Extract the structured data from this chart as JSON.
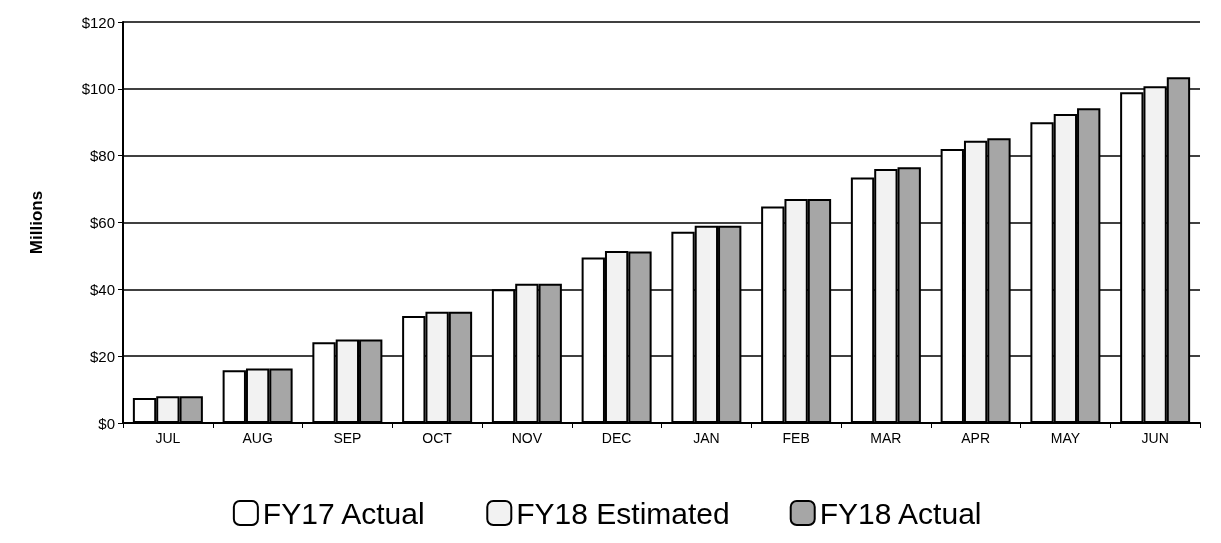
{
  "chart_data": {
    "type": "bar",
    "ylabel": "Millions",
    "categories": [
      "JUL",
      "AUG",
      "SEP",
      "OCT",
      "NOV",
      "DEC",
      "JAN",
      "FEB",
      "MAR",
      "APR",
      "MAY",
      "JUN"
    ],
    "series": [
      {
        "name": "FY17 Actual",
        "color": "#ffffff",
        "values": [
          7.5,
          15.8,
          24.2,
          32,
          40,
          49.5,
          57.2,
          64.8,
          73.5,
          82,
          90,
          99
        ]
      },
      {
        "name": "FY18 Estimated",
        "color": "#f2f2f2",
        "values": [
          8,
          16.3,
          25,
          33.3,
          41.7,
          51.5,
          59,
          67,
          76,
          84.5,
          92.5,
          100.8
        ]
      },
      {
        "name": "FY18 Actual",
        "color": "#a6a6a6",
        "values": [
          8,
          16.3,
          25,
          33.3,
          41.7,
          51.3,
          59,
          67,
          76.5,
          85.2,
          94.2,
          103.5
        ]
      }
    ],
    "ylim": [
      0,
      120
    ],
    "yticks": [
      {
        "value": 0,
        "label": "$0"
      },
      {
        "value": 20,
        "label": "$20"
      },
      {
        "value": 40,
        "label": "$40"
      },
      {
        "value": 60,
        "label": "$60"
      },
      {
        "value": 80,
        "label": "$80"
      },
      {
        "value": 100,
        "label": "$100"
      },
      {
        "value": 120,
        "label": "$120"
      }
    ],
    "grid": "y",
    "legend": "bottom"
  }
}
